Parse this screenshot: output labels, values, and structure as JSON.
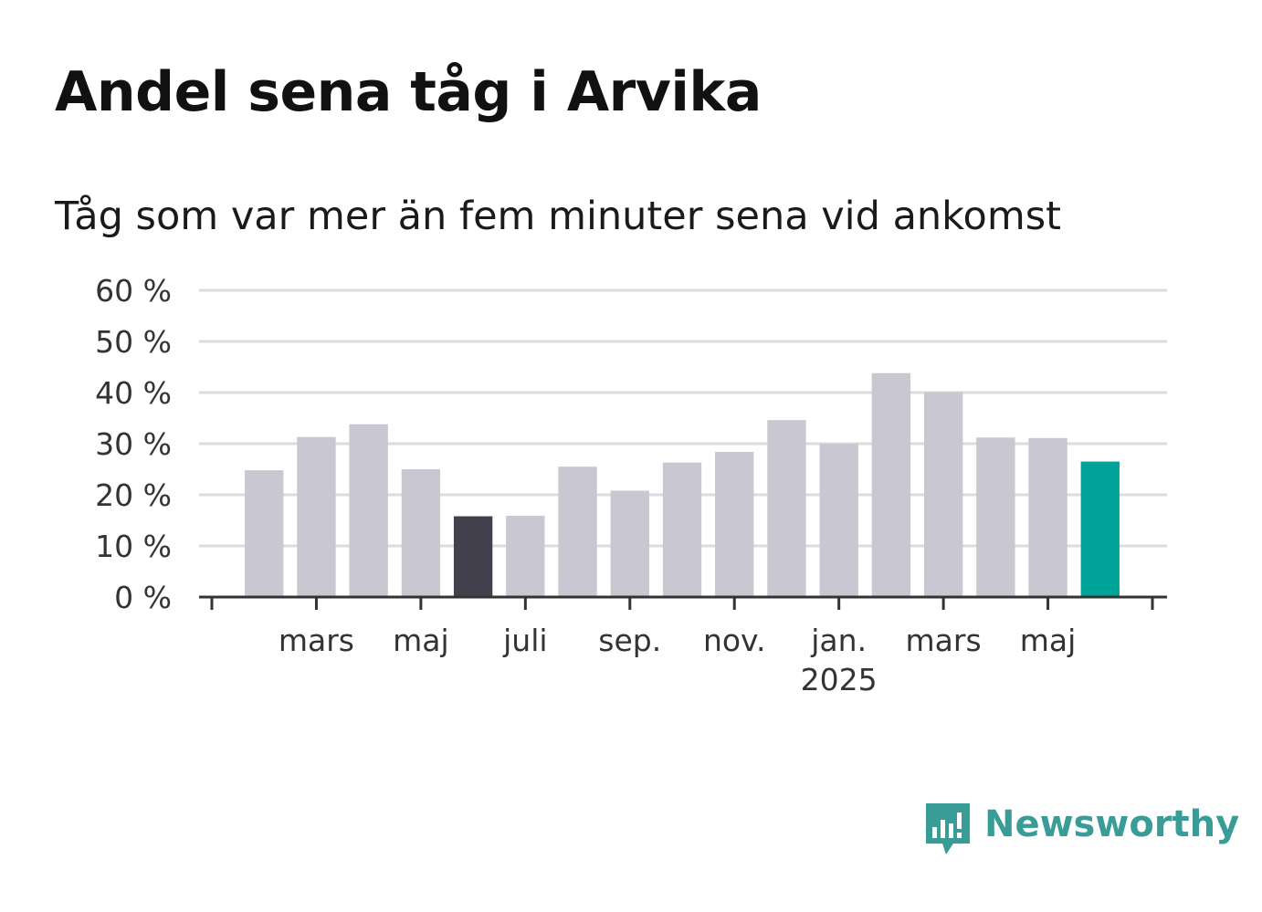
{
  "chart_data": {
    "type": "bar",
    "title": "Andel sena tåg i Arvika",
    "subtitle": "Tåg som var mer än fem minuter sena vid ankomst",
    "months": [
      "feb 2024",
      "mars 2024",
      "apr 2024",
      "maj 2024",
      "juni 2024",
      "juli 2024",
      "aug 2024",
      "sep 2024",
      "okt 2024",
      "nov 2024",
      "dec 2024",
      "jan 2025",
      "feb 2025",
      "mars 2025",
      "apr 2025",
      "maj 2025",
      "juni 2025"
    ],
    "values": [
      24.8,
      31.3,
      33.8,
      25.0,
      15.8,
      15.9,
      25.5,
      20.8,
      26.3,
      28.4,
      34.6,
      30.0,
      43.8,
      40.1,
      31.2,
      31.1,
      26.5
    ],
    "ylim": [
      0,
      60
    ],
    "yticks": [
      0,
      10,
      20,
      30,
      40,
      50,
      60
    ],
    "ytick_labels": [
      "0 %",
      "10 %",
      "20 %",
      "30 %",
      "40 %",
      "50 %",
      "60 %"
    ],
    "xtick_labels": [
      {
        "month_index": 1,
        "label": "mars",
        "sub": ""
      },
      {
        "month_index": 3,
        "label": "maj",
        "sub": ""
      },
      {
        "month_index": 5,
        "label": "juli",
        "sub": ""
      },
      {
        "month_index": 7,
        "label": "sep.",
        "sub": ""
      },
      {
        "month_index": 9,
        "label": "nov.",
        "sub": ""
      },
      {
        "month_index": 11,
        "label": "jan.",
        "sub": "2025"
      },
      {
        "month_index": 13,
        "label": "mars",
        "sub": ""
      },
      {
        "month_index": 15,
        "label": "maj",
        "sub": ""
      }
    ],
    "grid": true,
    "colors": {
      "default_bar": "#c8c7d2",
      "lowest_bar": "#42404d",
      "latest_bar": "#00a398",
      "grid": "#dcdcdc",
      "axis": "#333333"
    },
    "highlight": {
      "lowest_index": 4,
      "latest_index": 16
    }
  },
  "brand": {
    "name": "Newsworthy",
    "color": "#3a9c97",
    "icon": "newsworthy-logo-icon"
  }
}
